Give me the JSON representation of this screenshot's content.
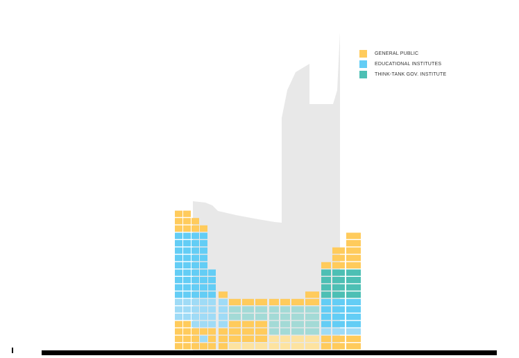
{
  "legend": {
    "items": [
      {
        "label": "GENERAL PUBLIC",
        "color": "#FFCB5C"
      },
      {
        "label": "EDUCATIONAL INSTITUTES",
        "color": "#63CDF5"
      },
      {
        "label": "THINK-TANK GOV. INSTITUTE",
        "color": "#4DBFB4"
      }
    ]
  },
  "colors": {
    "silhouette": "#E8E8E8",
    "ground": "#000000",
    "general_public_light": "#FDE3A0",
    "educational_light": "#9FDBF6",
    "think_tank_light": "#A3DAD6"
  }
}
